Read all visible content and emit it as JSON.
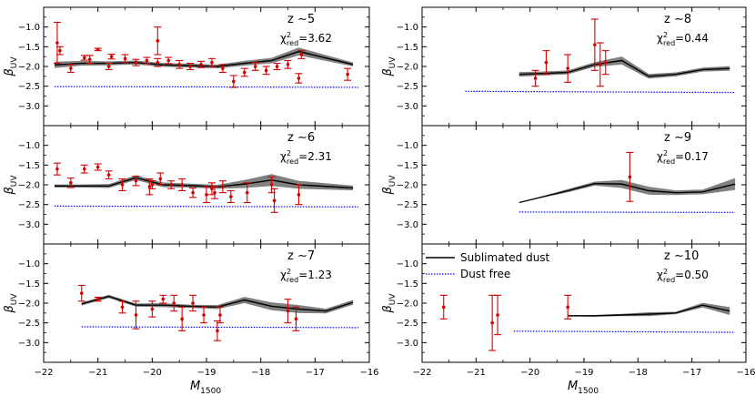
{
  "figure": {
    "xlabel": "M",
    "xlabel_sub": "1500",
    "ylabel": "β",
    "ylabel_sub": "UV",
    "xticks": [
      "−22",
      "−21",
      "−20",
      "−19",
      "−18",
      "−17",
      "−16"
    ],
    "yticks": [
      "−1.0",
      "−1.5",
      "−2.0",
      "−2.5",
      "−3.0"
    ],
    "legend": {
      "model": "Sublimated dust",
      "dustfree": "Dust free",
      "placement": "upper-left of z~10 panel"
    },
    "colors": {
      "model": "#000000",
      "band": "#808080",
      "dustfree": "#0000ff",
      "data": "#d40000"
    }
  },
  "chart_data": [
    {
      "type": "line",
      "panel": "z~5",
      "z_label": "z ∼5",
      "chi_prefix": "χ",
      "chi_sub": "red",
      "chi_sup": "2",
      "chi_value": "=3.62",
      "xlim": [
        -22,
        -16
      ],
      "ylim": [
        -3.5,
        -0.5
      ],
      "model": {
        "x": [
          -21.8,
          -21.3,
          -20.8,
          -20.3,
          -19.8,
          -19.3,
          -18.8,
          -18.3,
          -17.8,
          -17.3,
          -16.3
        ],
        "y": [
          -1.96,
          -1.92,
          -1.92,
          -1.9,
          -1.96,
          -1.98,
          -2.0,
          -1.92,
          -1.85,
          -1.62,
          -1.95
        ],
        "err": [
          0.08,
          0.06,
          0.05,
          0.05,
          0.05,
          0.05,
          0.05,
          0.06,
          0.07,
          0.1,
          0.05
        ]
      },
      "dust_free": {
        "x": [
          -21.8,
          -16.2
        ],
        "y": [
          -2.51,
          -2.53
        ]
      },
      "observations": [
        {
          "x": -21.75,
          "y": -1.4,
          "e": 0.52
        },
        {
          "x": -21.7,
          "y": -1.6,
          "e": 0.1
        },
        {
          "x": -21.5,
          "y": -2.05,
          "e": 0.1
        },
        {
          "x": -21.25,
          "y": -1.78,
          "e": 0.06
        },
        {
          "x": -21.15,
          "y": -1.82,
          "e": 0.1
        },
        {
          "x": -21.0,
          "y": -1.57,
          "e": 0.03
        },
        {
          "x": -20.75,
          "y": -1.75,
          "e": 0.06
        },
        {
          "x": -20.5,
          "y": -1.8,
          "e": 0.1
        },
        {
          "x": -20.3,
          "y": -1.9,
          "e": 0.08
        },
        {
          "x": -20.1,
          "y": -1.85,
          "e": 0.08
        },
        {
          "x": -19.9,
          "y": -1.9,
          "e": 0.1
        },
        {
          "x": -19.7,
          "y": -1.85,
          "e": 0.08
        },
        {
          "x": -19.5,
          "y": -1.95,
          "e": 0.1
        },
        {
          "x": -19.3,
          "y": -2.0,
          "e": 0.08
        },
        {
          "x": -19.1,
          "y": -1.95,
          "e": 0.08
        },
        {
          "x": -18.9,
          "y": -1.9,
          "e": 0.1
        },
        {
          "x": -18.7,
          "y": -2.05,
          "e": 0.1
        },
        {
          "x": -18.5,
          "y": -2.38,
          "e": 0.15
        },
        {
          "x": -18.3,
          "y": -2.15,
          "e": 0.1
        },
        {
          "x": -18.1,
          "y": -2.0,
          "e": 0.1
        },
        {
          "x": -17.9,
          "y": -2.1,
          "e": 0.1
        },
        {
          "x": -17.7,
          "y": -2.0,
          "e": 0.08
        },
        {
          "x": -17.5,
          "y": -1.95,
          "e": 0.1
        },
        {
          "x": -17.3,
          "y": -2.3,
          "e": 0.12
        },
        {
          "x": -17.25,
          "y": -1.7,
          "e": 0.1
        },
        {
          "x": -19.9,
          "y": -1.35,
          "e": 0.35
        },
        {
          "x": -20.8,
          "y": -2.0,
          "e": 0.08
        },
        {
          "x": -16.4,
          "y": -2.2,
          "e": 0.15
        }
      ]
    },
    {
      "type": "line",
      "panel": "z~8",
      "z_label": "z ∼8",
      "chi_prefix": "χ",
      "chi_sub": "red",
      "chi_sup": "2",
      "chi_value": "=0.44",
      "xlim": [
        -22,
        -16
      ],
      "ylim": [
        -3.5,
        -0.5
      ],
      "model": {
        "x": [
          -20.2,
          -19.8,
          -19.3,
          -18.8,
          -18.3,
          -17.8,
          -17.3,
          -16.8,
          -16.3
        ],
        "y": [
          -2.2,
          -2.18,
          -2.15,
          -1.95,
          -1.85,
          -2.25,
          -2.2,
          -2.08,
          -2.05
        ],
        "err": [
          0.06,
          0.05,
          0.05,
          0.06,
          0.1,
          0.06,
          0.05,
          0.05,
          0.06
        ]
      },
      "dust_free": {
        "x": [
          -21.2,
          -16.2
        ],
        "y": [
          -2.63,
          -2.66
        ]
      },
      "observations": [
        {
          "x": -19.9,
          "y": -2.3,
          "e": 0.2
        },
        {
          "x": -19.7,
          "y": -1.9,
          "e": 0.3
        },
        {
          "x": -19.3,
          "y": -2.05,
          "e": 0.35
        },
        {
          "x": -18.8,
          "y": -1.45,
          "e": 0.65
        },
        {
          "x": -18.7,
          "y": -1.95,
          "e": 0.55
        },
        {
          "x": -18.6,
          "y": -1.9,
          "e": 0.3
        }
      ]
    },
    {
      "type": "line",
      "panel": "z~6",
      "z_label": "z ∼6",
      "chi_prefix": "χ",
      "chi_sub": "red",
      "chi_sup": "2",
      "chi_value": "=2.31",
      "xlim": [
        -22,
        -16
      ],
      "ylim": [
        -3.5,
        -0.5
      ],
      "model": {
        "x": [
          -21.8,
          -21.3,
          -20.8,
          -20.3,
          -19.8,
          -19.3,
          -18.8,
          -18.3,
          -17.8,
          -17.3,
          -16.3
        ],
        "y": [
          -2.03,
          -2.03,
          -2.03,
          -1.82,
          -2.0,
          -2.02,
          -2.05,
          -1.98,
          -1.88,
          -2.0,
          -2.08
        ],
        "err": [
          0.04,
          0.04,
          0.05,
          0.06,
          0.06,
          0.05,
          0.05,
          0.1,
          0.15,
          0.1,
          0.06
        ]
      },
      "dust_free": {
        "x": [
          -21.8,
          -16.2
        ],
        "y": [
          -2.54,
          -2.56
        ]
      },
      "observations": [
        {
          "x": -21.75,
          "y": -1.6,
          "e": 0.15
        },
        {
          "x": -21.5,
          "y": -1.95,
          "e": 0.12
        },
        {
          "x": -21.25,
          "y": -1.6,
          "e": 0.1
        },
        {
          "x": -21.0,
          "y": -1.55,
          "e": 0.08
        },
        {
          "x": -20.8,
          "y": -1.75,
          "e": 0.1
        },
        {
          "x": -20.55,
          "y": -2.0,
          "e": 0.15
        },
        {
          "x": -20.3,
          "y": -1.9,
          "e": 0.12
        },
        {
          "x": -20.05,
          "y": -2.05,
          "e": 0.2
        },
        {
          "x": -19.85,
          "y": -1.85,
          "e": 0.15
        },
        {
          "x": -19.65,
          "y": -2.0,
          "e": 0.1
        },
        {
          "x": -19.45,
          "y": -2.0,
          "e": 0.15
        },
        {
          "x": -19.25,
          "y": -2.2,
          "e": 0.12
        },
        {
          "x": -19.0,
          "y": -2.25,
          "e": 0.2
        },
        {
          "x": -18.85,
          "y": -2.2,
          "e": 0.15
        },
        {
          "x": -18.7,
          "y": -2.05,
          "e": 0.15
        },
        {
          "x": -18.55,
          "y": -2.3,
          "e": 0.15
        },
        {
          "x": -18.25,
          "y": -2.2,
          "e": 0.25
        },
        {
          "x": -17.8,
          "y": -2.0,
          "e": 0.2
        },
        {
          "x": -17.75,
          "y": -2.4,
          "e": 0.3
        },
        {
          "x": -17.3,
          "y": -2.25,
          "e": 0.25
        },
        {
          "x": -20.0,
          "y": -2.0,
          "e": 0.1
        },
        {
          "x": -18.9,
          "y": -2.1,
          "e": 0.15
        }
      ]
    },
    {
      "type": "line",
      "panel": "z~9",
      "z_label": "z ∼9",
      "chi_prefix": "χ",
      "chi_sub": "red",
      "chi_sup": "2",
      "chi_value": "=0.17",
      "xlim": [
        -22,
        -16
      ],
      "ylim": [
        -3.5,
        -0.5
      ],
      "model": {
        "x": [
          -20.2,
          -19.3,
          -18.8,
          -18.3,
          -17.8,
          -17.3,
          -16.8,
          -16.2
        ],
        "y": [
          -2.45,
          -2.15,
          -1.97,
          -1.98,
          -2.15,
          -2.2,
          -2.18,
          -1.98
        ],
        "err": [
          0.0,
          0.04,
          0.05,
          0.1,
          0.1,
          0.06,
          0.06,
          0.15
        ]
      },
      "dust_free": {
        "x": [
          -20.2,
          -16.2
        ],
        "y": [
          -2.69,
          -2.7
        ]
      },
      "observations": [
        {
          "x": -18.15,
          "y": -1.8,
          "e": 0.62
        }
      ]
    },
    {
      "type": "line",
      "panel": "z~7",
      "z_label": "z ∼7",
      "chi_prefix": "χ",
      "chi_sub": "red",
      "chi_sup": "2",
      "chi_value": "=1.23",
      "xlim": [
        -22,
        -16
      ],
      "ylim": [
        -3.5,
        -0.5
      ],
      "model": {
        "x": [
          -21.3,
          -20.8,
          -20.3,
          -19.8,
          -19.3,
          -18.8,
          -18.3,
          -17.8,
          -17.3,
          -16.8,
          -16.3
        ],
        "y": [
          -2.02,
          -1.83,
          -2.05,
          -2.05,
          -2.08,
          -2.1,
          -1.92,
          -2.08,
          -2.15,
          -2.2,
          -1.98
        ],
        "err": [
          0.04,
          0.04,
          0.04,
          0.05,
          0.04,
          0.05,
          0.08,
          0.1,
          0.1,
          0.06,
          0.06
        ]
      },
      "dust_free": {
        "x": [
          -21.3,
          -16.2
        ],
        "y": [
          -2.6,
          -2.62
        ]
      },
      "observations": [
        {
          "x": -21.3,
          "y": -1.75,
          "e": 0.2
        },
        {
          "x": -21.0,
          "y": -1.9,
          "e": 0.05
        },
        {
          "x": -20.55,
          "y": -2.1,
          "e": 0.15
        },
        {
          "x": -20.3,
          "y": -2.3,
          "e": 0.35
        },
        {
          "x": -20.0,
          "y": -2.15,
          "e": 0.2
        },
        {
          "x": -19.8,
          "y": -1.9,
          "e": 0.1
        },
        {
          "x": -19.6,
          "y": -2.0,
          "e": 0.2
        },
        {
          "x": -19.45,
          "y": -2.4,
          "e": 0.3
        },
        {
          "x": -19.25,
          "y": -2.0,
          "e": 0.2
        },
        {
          "x": -19.05,
          "y": -2.3,
          "e": 0.2
        },
        {
          "x": -18.8,
          "y": -2.7,
          "e": 0.25
        },
        {
          "x": -18.75,
          "y": -2.3,
          "e": 0.2
        },
        {
          "x": -17.5,
          "y": -2.2,
          "e": 0.3
        },
        {
          "x": -17.35,
          "y": -2.4,
          "e": 0.3
        }
      ]
    },
    {
      "type": "line",
      "panel": "z~10",
      "z_label": "z ∼10",
      "chi_prefix": "χ",
      "chi_sub": "red",
      "chi_sup": "2",
      "chi_value": "=0.50",
      "xlim": [
        -22,
        -16
      ],
      "ylim": [
        -3.5,
        -0.5
      ],
      "model": {
        "x": [
          -19.3,
          -18.8,
          -18.3,
          -17.8,
          -17.3,
          -16.8,
          -16.3
        ],
        "y": [
          -2.32,
          -2.32,
          -2.3,
          -2.28,
          -2.25,
          -2.05,
          -2.2
        ],
        "err": [
          0.01,
          0.02,
          0.03,
          0.05,
          0.03,
          0.06,
          0.1
        ]
      },
      "dust_free": {
        "x": [
          -20.3,
          -16.2
        ],
        "y": [
          -2.71,
          -2.74
        ]
      },
      "observations": [
        {
          "x": -21.6,
          "y": -2.1,
          "e": 0.3
        },
        {
          "x": -20.7,
          "y": -2.5,
          "e": 0.7
        },
        {
          "x": -20.6,
          "y": -2.3,
          "e": 0.5
        },
        {
          "x": -19.3,
          "y": -2.1,
          "e": 0.3
        }
      ]
    }
  ]
}
